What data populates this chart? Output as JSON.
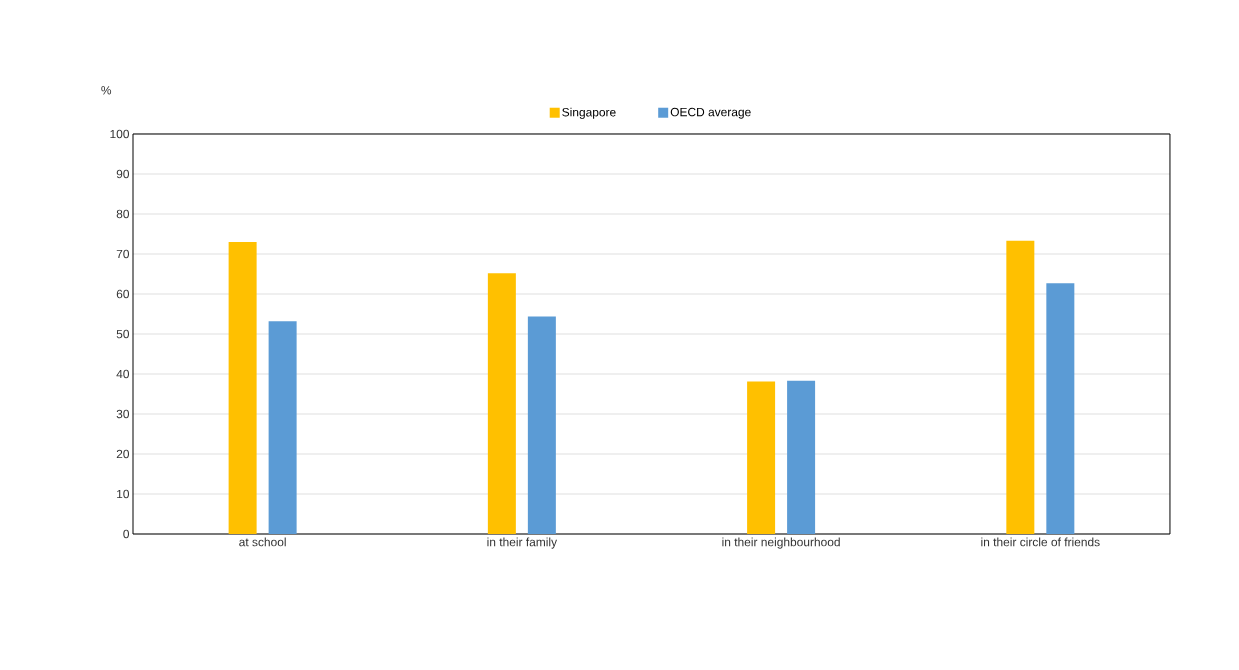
{
  "chart_data": {
    "type": "bar",
    "ylabel": "%",
    "categories": [
      "at school",
      "in their family",
      "in their neighbourhood",
      "in their circle of friends"
    ],
    "series": [
      {
        "name": "Singapore",
        "color": "#ffc000",
        "values": [
          73,
          65.2,
          38.1,
          73.3
        ]
      },
      {
        "name": "OECD average",
        "color": "#5b9bd5",
        "values": [
          53.2,
          54.4,
          38.3,
          62.7
        ]
      }
    ],
    "ylim": [
      0,
      100
    ],
    "yticks": [
      0,
      10,
      20,
      30,
      40,
      50,
      60,
      70,
      80,
      90,
      100
    ],
    "grid": "y",
    "legend": "top"
  }
}
